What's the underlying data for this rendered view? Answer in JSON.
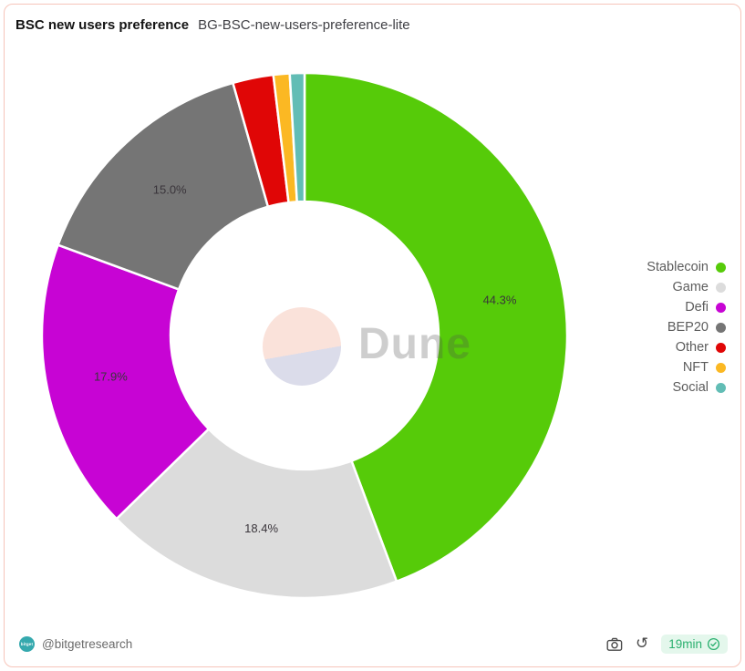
{
  "header": {
    "title": "BSC new users preference",
    "subtitle": "BG-BSC-new-users-preference-lite"
  },
  "chart_data": {
    "type": "pie",
    "title": "BSC new users preference",
    "donut": true,
    "inner_radius_ratio": 0.51,
    "start_angle": "top",
    "direction": "clockwise",
    "legend_position": "right",
    "unit": "%",
    "slices": [
      {
        "label": "Stablecoin",
        "value": 44.3,
        "percent_label": "44.3%",
        "color": "#56cb09"
      },
      {
        "label": "Game",
        "value": 18.4,
        "percent_label": "18.4%",
        "color": "#dcdcdc"
      },
      {
        "label": "Defi",
        "value": 17.9,
        "percent_label": "17.9%",
        "color": "#c704d4"
      },
      {
        "label": "BEP20",
        "value": 15.0,
        "percent_label": "15.0%",
        "color": "#757575"
      },
      {
        "label": "Other",
        "value": 2.5,
        "percent_label": "",
        "color": "#e00606"
      },
      {
        "label": "NFT",
        "value": 1.0,
        "percent_label": "",
        "color": "#fbb823"
      },
      {
        "label": "Social",
        "value": 0.9,
        "percent_label": "",
        "color": "#62bdb5"
      }
    ]
  },
  "watermark": {
    "text": "Dune"
  },
  "footer": {
    "handle": "@bitgetresearch",
    "avatar_text": "bitget",
    "refresh_badge": "19min"
  },
  "colors": {
    "card_border": "#f7c5ba",
    "badge_bg": "#e4f7ec",
    "badge_text": "#2ab06f",
    "slice_label_text": "#3a353b"
  }
}
